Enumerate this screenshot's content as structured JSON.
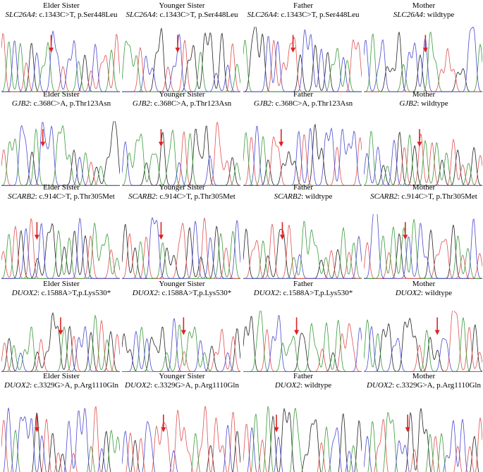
{
  "rows": [
    {
      "panels": [
        {
          "member": "Elder Sister",
          "gene": "SLC26A4",
          "detail": ": c.1343C>T, p.Ser448Leu"
        },
        {
          "member": "Younger Sister",
          "gene": "SLC26A4",
          "detail": ": c.1343C>T, p.Ser448Leu"
        },
        {
          "member": "Father",
          "gene": "SLC26A4",
          "detail": ": c.1343C>T, p.Ser448Leu"
        },
        {
          "member": "Mother",
          "gene": "SLC26A4",
          "detail": ": wildtype"
        }
      ]
    },
    {
      "panels": [
        {
          "member": "Elder Sister",
          "gene": "GJB2",
          "detail": ": c.368C>A, p.Thr123Asn"
        },
        {
          "member": "Younger Sister",
          "gene": "GJB2",
          "detail": ": c.368C>A, p.Thr123Asn"
        },
        {
          "member": "Father",
          "gene": "GJB2",
          "detail": ": c.368C>A, p.Thr123Asn"
        },
        {
          "member": "Mother",
          "gene": "GJB2",
          "detail": ": wildtype"
        }
      ]
    },
    {
      "panels": [
        {
          "member": "Elder Sister",
          "gene": "SCARB2",
          "detail": ": c.914C>T, p.Thr305Met"
        },
        {
          "member": "Younger Sister",
          "gene": "SCARB2",
          "detail": ": c.914C>T, p.Thr305Met"
        },
        {
          "member": "Father",
          "gene": "SCARB2",
          "detail": ": wildtype"
        },
        {
          "member": "Mother",
          "gene": "SCARB2",
          "detail": ": c.914C>T, p.Thr305Met"
        }
      ]
    },
    {
      "panels": [
        {
          "member": "Elder Sister",
          "gene": "DUOX2",
          "detail": ": c.1588A>T,p.Lys530*"
        },
        {
          "member": "Younger Sister",
          "gene": "DUOX2",
          "detail": ": c.1588A>T,p.Lys530*"
        },
        {
          "member": "Father",
          "gene": "DUOX2",
          "detail": ": c.1588A>T,p.Lys530*"
        },
        {
          "member": "Mother",
          "gene": "DUOX2",
          "detail": ": wildtype"
        }
      ]
    },
    {
      "panels": [
        {
          "member": "Elder Sister",
          "gene": "DUOX2",
          "detail": ": c.3329G>A, p.Arg1110Gln"
        },
        {
          "member": "Younger Sister",
          "gene": "DUOX2",
          "detail": ": c.3329G>A, p.Arg1110Gln"
        },
        {
          "member": "Father",
          "gene": "DUOX2",
          "detail": ": wildtype"
        },
        {
          "member": "Mother",
          "gene": "DUOX2",
          "detail": ": c.3329G>A, p.Arg1110Gln"
        }
      ]
    }
  ]
}
